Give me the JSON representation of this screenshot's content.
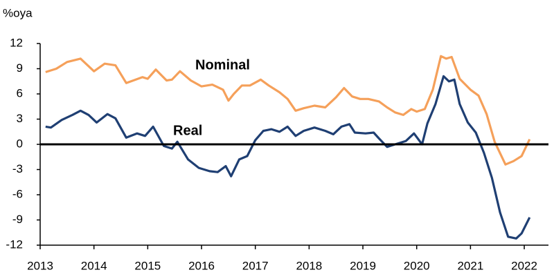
{
  "chart_data": {
    "type": "line",
    "y_label": "%oya",
    "xlim": [
      2013,
      2022.45
    ],
    "xticks": [
      2013,
      2014,
      2015,
      2016,
      2017,
      2018,
      2019,
      2020,
      2021,
      2022
    ],
    "ylim": [
      -12,
      12
    ],
    "yticks": [
      12,
      9,
      6,
      3,
      0,
      -3,
      -6,
      -9,
      -12
    ],
    "zero_line": true,
    "annotations": [
      "Nominal",
      "Real"
    ],
    "series": [
      {
        "name": "Nominal",
        "color": "#f5a05a",
        "x": [
          2013.1,
          2013.3,
          2013.5,
          2013.75,
          2014.0,
          2014.2,
          2014.4,
          2014.6,
          2014.9,
          2015.0,
          2015.15,
          2015.35,
          2015.45,
          2015.6,
          2015.8,
          2016.0,
          2016.2,
          2016.4,
          2016.5,
          2016.6,
          2016.75,
          2016.9,
          2017.1,
          2017.25,
          2017.45,
          2017.6,
          2017.75,
          2017.9,
          2018.1,
          2018.3,
          2018.5,
          2018.65,
          2018.8,
          2018.95,
          2019.1,
          2019.3,
          2019.45,
          2019.6,
          2019.75,
          2019.9,
          2020.0,
          2020.15,
          2020.3,
          2020.45,
          2020.55,
          2020.65,
          2020.8,
          2021.0,
          2021.15,
          2021.3,
          2021.45,
          2021.65,
          2021.8,
          2021.95,
          2022.1
        ],
        "values": [
          8.6,
          9.0,
          9.8,
          10.2,
          8.7,
          9.6,
          9.4,
          7.3,
          8.0,
          7.8,
          8.9,
          7.6,
          7.7,
          8.7,
          7.6,
          6.9,
          7.1,
          6.5,
          5.2,
          6.0,
          7.0,
          7.0,
          7.7,
          7.0,
          6.2,
          5.4,
          4.0,
          4.3,
          4.6,
          4.4,
          5.6,
          6.7,
          5.7,
          5.4,
          5.4,
          5.1,
          4.4,
          3.8,
          3.5,
          4.2,
          3.9,
          4.2,
          6.5,
          10.5,
          10.2,
          10.4,
          7.8,
          6.5,
          5.8,
          3.6,
          0.3,
          -2.4,
          -2.0,
          -1.4,
          0.6
        ]
      },
      {
        "name": "Real",
        "color": "#1f3f73",
        "x": [
          2013.1,
          2013.2,
          2013.4,
          2013.6,
          2013.75,
          2013.9,
          2014.05,
          2014.25,
          2014.4,
          2014.6,
          2014.8,
          2014.95,
          2015.1,
          2015.3,
          2015.45,
          2015.55,
          2015.75,
          2015.95,
          2016.15,
          2016.3,
          2016.45,
          2016.55,
          2016.7,
          2016.85,
          2017.0,
          2017.15,
          2017.3,
          2017.45,
          2017.6,
          2017.75,
          2017.9,
          2018.1,
          2018.3,
          2018.45,
          2018.6,
          2018.75,
          2018.85,
          2019.05,
          2019.2,
          2019.3,
          2019.45,
          2019.6,
          2019.8,
          2019.95,
          2020.1,
          2020.2,
          2020.35,
          2020.5,
          2020.6,
          2020.7,
          2020.8,
          2020.95,
          2021.1,
          2021.25,
          2021.4,
          2021.55,
          2021.7,
          2021.85,
          2021.95,
          2022.1
        ],
        "values": [
          2.1,
          2.0,
          2.9,
          3.5,
          4.0,
          3.5,
          2.6,
          3.6,
          3.1,
          0.8,
          1.3,
          1.0,
          2.1,
          -0.2,
          -0.5,
          0.3,
          -1.8,
          -2.8,
          -3.2,
          -3.3,
          -2.6,
          -3.8,
          -1.8,
          -1.4,
          0.5,
          1.6,
          1.8,
          1.5,
          2.1,
          1.0,
          1.6,
          2.0,
          1.6,
          1.2,
          2.1,
          2.4,
          1.4,
          1.3,
          1.4,
          0.7,
          -0.3,
          0.0,
          0.4,
          1.3,
          0.0,
          2.5,
          4.8,
          8.1,
          7.5,
          7.7,
          4.8,
          2.6,
          1.4,
          -1.0,
          -4.0,
          -8.1,
          -11.0,
          -11.2,
          -10.6,
          -8.7
        ]
      }
    ]
  }
}
